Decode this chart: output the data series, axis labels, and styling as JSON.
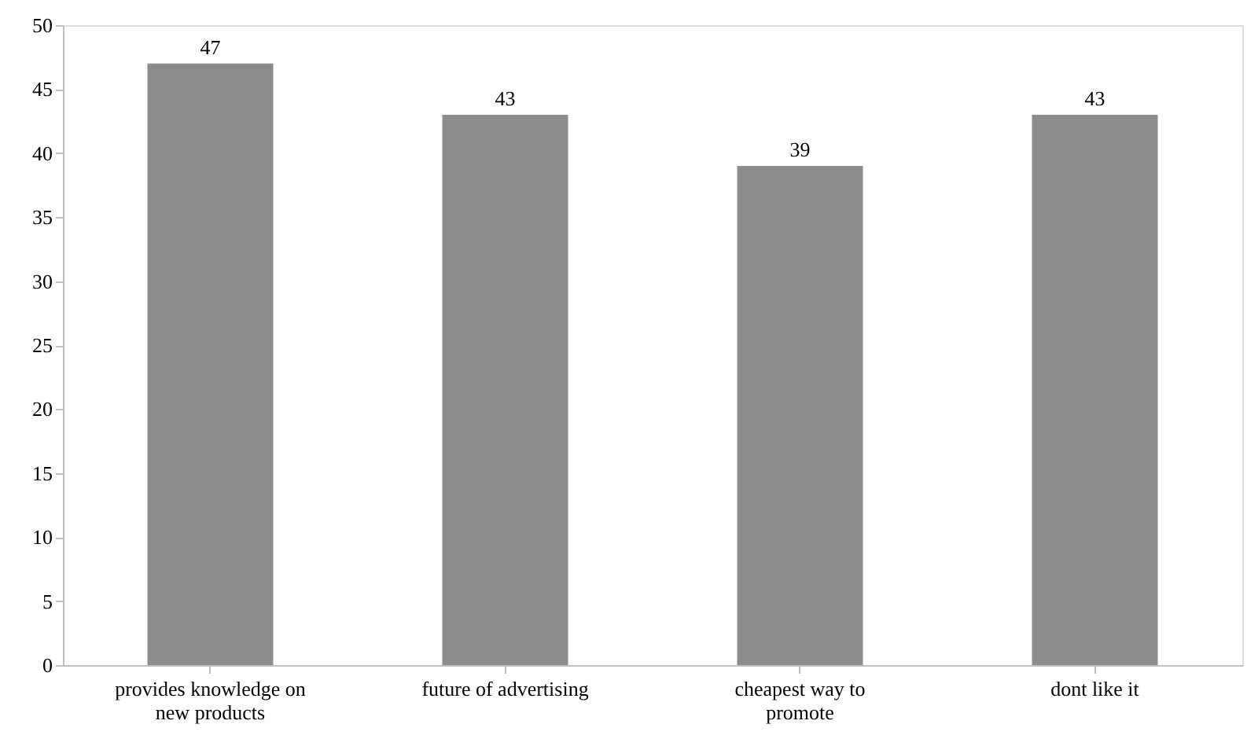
{
  "chart_data": {
    "type": "bar",
    "categories": [
      "provides knowledge on new products",
      "future of advertising",
      "cheapest way to promote",
      "dont like it"
    ],
    "values": [
      47,
      43,
      39,
      43
    ],
    "color": "#8c8c8c",
    "ylim": [
      0,
      50
    ],
    "yticks": [
      0,
      5,
      10,
      15,
      20,
      25,
      30,
      35,
      40,
      45,
      50
    ],
    "data_labels": true,
    "grid": false
  }
}
